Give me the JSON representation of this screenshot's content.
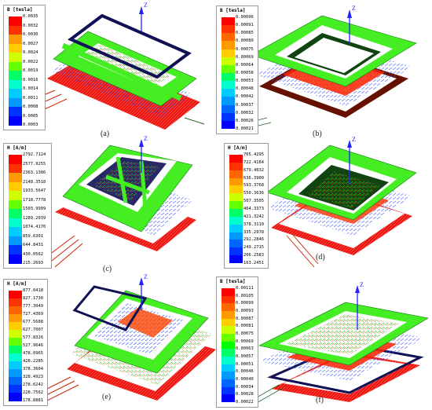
{
  "panels": [
    {
      "label": "(a)",
      "legend_title": "B [tesla]",
      "ticks": [
        "0.0035",
        "0.0032",
        "0.0030",
        "0.0027",
        "0.0024",
        "0.0022",
        "0.0019",
        "0.0016",
        "0.0014",
        "0.0011",
        "0.0008",
        "0.0005",
        "0.0003"
      ],
      "axis_label": "Z"
    },
    {
      "label": "(b)",
      "legend_title": "B [tesla]",
      "ticks": [
        "0.00096",
        "0.00091",
        "0.00085",
        "0.00080",
        "0.00075",
        "0.00069",
        "0.00064",
        "0.00058",
        "0.00053",
        "0.00048",
        "0.00042",
        "0.00037",
        "0.00032",
        "0.00026",
        "0.00021"
      ],
      "axis_label": "Z"
    },
    {
      "label": "(c)",
      "legend_title": "H [A/m]",
      "ticks": [
        "2792.7124",
        "2577.9255",
        "2363.1386",
        "2148.3518",
        "1933.5647",
        "1718.7778",
        "1503.9909",
        "1289.2039",
        "1074.4170",
        "859.6301",
        "644.8431",
        "430.0562",
        "215.2693"
      ],
      "axis_label": "Z"
    },
    {
      "label": "(d)",
      "legend_title": "H [A/m]",
      "ticks": [
        "765.4295",
        "722.4184",
        "679.4032",
        "636.3900",
        "593.3768",
        "550.3636",
        "507.3505",
        "464.3373",
        "421.3242",
        "378.3110",
        "335.2978",
        "292.2846",
        "249.2715",
        "206.2583",
        "163.2451"
      ],
      "axis_label": "Z"
    },
    {
      "label": "(e)",
      "legend_title": "H [A/m]",
      "ticks": [
        "877.0418",
        "827.1730",
        "777.3049",
        "727.4369",
        "677.5688",
        "627.7007",
        "577.8326",
        "527.9646",
        "478.0965",
        "428.2285",
        "378.3604",
        "328.4923",
        "278.6242",
        "228.7562",
        "178.8881"
      ],
      "axis_label": "Z"
    },
    {
      "label": "(f)",
      "legend_title": "B [tesla]",
      "ticks": [
        "0.00111",
        "0.00105",
        "0.00099",
        "0.00093",
        "0.00087",
        "0.00081",
        "0.00075",
        "0.00069",
        "0.00063",
        "0.00057",
        "0.00051",
        "0.00046",
        "0.00040",
        "0.00034",
        "0.00028",
        "0.00022"
      ],
      "axis_label": "Z"
    }
  ],
  "colormap": [
    "#ff0000",
    "#ff3300",
    "#ff6600",
    "#ff9900",
    "#ffcc00",
    "#ccff00",
    "#66ff00",
    "#00ff00",
    "#00ff66",
    "#00ffcc",
    "#00ccff",
    "#0099ff",
    "#0066ff",
    "#0033ff",
    "#0000ff"
  ]
}
